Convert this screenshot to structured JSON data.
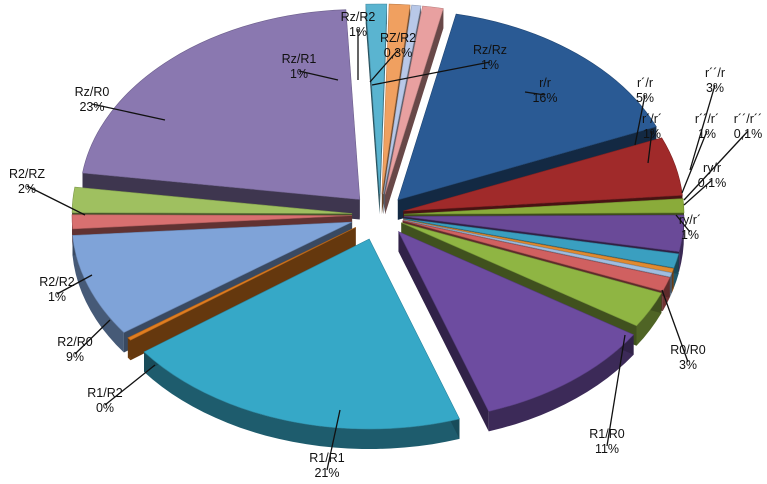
{
  "chart_data": {
    "type": "pie",
    "style": "3d-exploded",
    "legend": "none",
    "slices": [
      {
        "name": "r/r",
        "value": 16,
        "value_label": "16%",
        "color": "#2a5a94"
      },
      {
        "name": "r´/r",
        "value": 5,
        "value_label": "5%",
        "color": "#a02a2a"
      },
      {
        "name": "r´/r´",
        "value": 1,
        "value_label": "1%",
        "color": "#8aab3a"
      },
      {
        "name": "r´´/r",
        "value": 3,
        "value_label": "3%",
        "color": "#6a4a98"
      },
      {
        "name": "r´´/r´",
        "value": 1,
        "value_label": "1%",
        "color": "#3a9fc0"
      },
      {
        "name": "r´´/r´´",
        "value": 0.1,
        "value_label": "0,1%",
        "color": "#e08a30"
      },
      {
        "name": "ry/r",
        "value": 0.1,
        "value_label": "0,1%",
        "color": "#9fbde0"
      },
      {
        "name": "ry/r´",
        "value": 1,
        "value_label": "1%",
        "color": "#d06060"
      },
      {
        "name": "R0/R0",
        "value": 3,
        "value_label": "3%",
        "color": "#8fb543"
      },
      {
        "name": "R1/R0",
        "value": 11,
        "value_label": "11%",
        "color": "#6d4ca0"
      },
      {
        "name": "R1/R1",
        "value": 21,
        "value_label": "21%",
        "color": "#36a8c7"
      },
      {
        "name": "R1/R2",
        "value": 0,
        "value_label": "0%",
        "color": "#e07d20"
      },
      {
        "name": "R2/R0",
        "value": 9,
        "value_label": "9%",
        "color": "#7fa3d8"
      },
      {
        "name": "R2/R2",
        "value": 1,
        "value_label": "1%",
        "color": "#d87070"
      },
      {
        "name": "R2/RZ",
        "value": 2,
        "value_label": "2%",
        "color": "#9fc060"
      },
      {
        "name": "Rz/R0",
        "value": 23,
        "value_label": "23%",
        "color": "#8a78b0"
      },
      {
        "name": "Rz/R1",
        "value": 1,
        "value_label": "1%",
        "color": "#5ab4d0"
      },
      {
        "name": "Rz/R2",
        "value": 1,
        "value_label": "1%",
        "color": "#f0a060"
      },
      {
        "name": "RZ/R2",
        "value": 0.3,
        "value_label": "0,3%",
        "color": "#b8c8e8"
      },
      {
        "name": "Rz/Rz",
        "value": 1,
        "value_label": "1%",
        "color": "#e8a0a0"
      }
    ]
  }
}
